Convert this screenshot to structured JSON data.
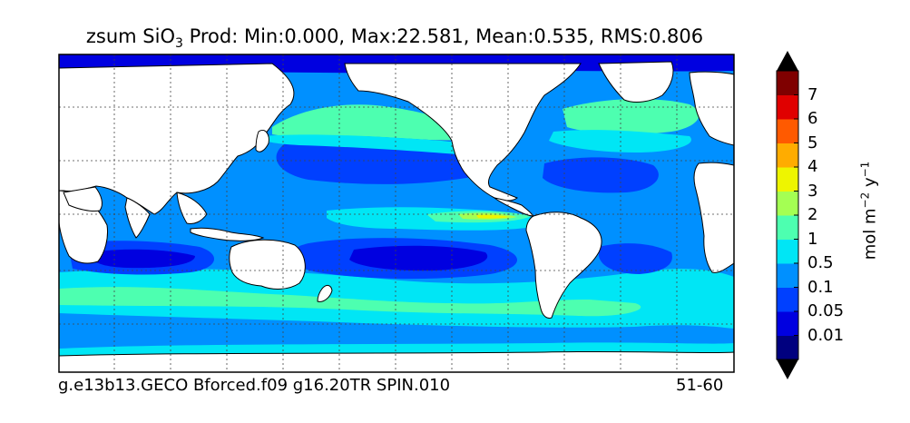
{
  "title": {
    "prefix": "zsum SiO",
    "subscript": "3",
    "suffix": " Prod: Min:0.000, Max:22.581, Mean:0.535, RMS:0.806"
  },
  "caption": {
    "left": "g.e13b13.GECO Bforced.f09 g16.20TR SPIN.010",
    "right": "51-60"
  },
  "colorbar": {
    "units_prefix": "mol m",
    "units_exp1": "−2",
    "units_mid": " y",
    "units_exp2": "−1",
    "levels": [
      "0.01",
      "0.05",
      "0.1",
      "0.5",
      "1",
      "2",
      "3",
      "4",
      "5",
      "6",
      "7"
    ],
    "colors": [
      "#00007f",
      "#0000e0",
      "#0040ff",
      "#0090ff",
      "#00e6f5",
      "#4dffb0",
      "#a4ff53",
      "#eef500",
      "#ffac00",
      "#ff5a00",
      "#e00000",
      "#7f0000"
    ],
    "extend": "both"
  },
  "map": {
    "projection": "equirectangular",
    "gridlines": "dotted",
    "land_color": "#ffffff",
    "ocean_base_color": "#0090ff"
  }
}
